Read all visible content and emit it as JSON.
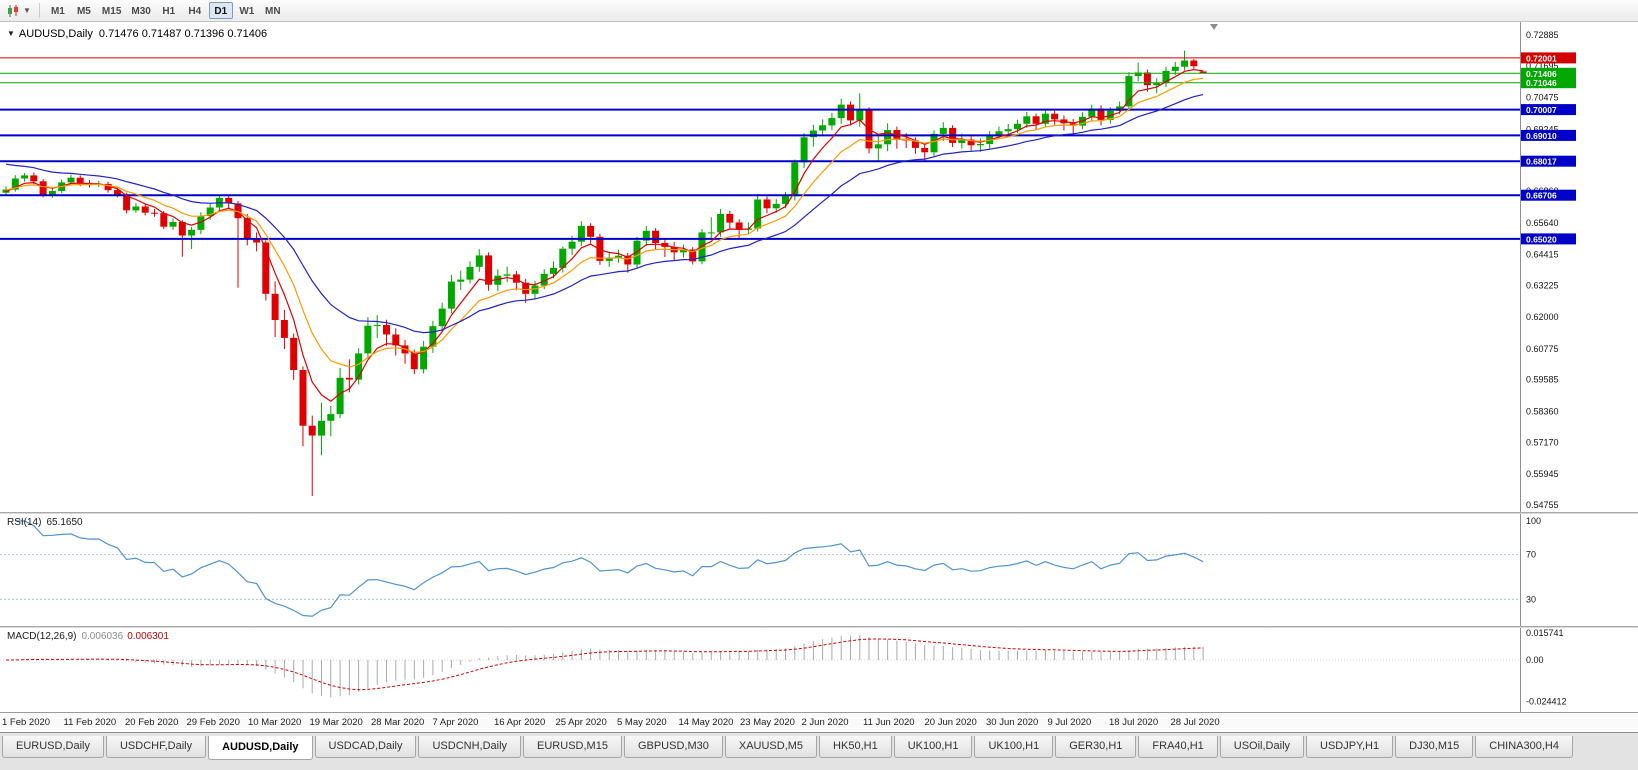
{
  "toolbar": {
    "timeframes": [
      "M1",
      "M5",
      "M15",
      "M30",
      "H1",
      "H4",
      "D1",
      "W1",
      "MN"
    ],
    "active_timeframe": "D1"
  },
  "chart": {
    "title": "AUDUSD,Daily",
    "ohlc_line": "0.71476 0.71487 0.71396 0.71406",
    "price_axis_ticks": [
      "0.72885",
      "0.71695",
      "0.70475",
      "0.69245",
      "0.68025",
      "0.66860",
      "0.65640",
      "0.64415",
      "0.63225",
      "0.62000",
      "0.60775",
      "0.59585",
      "0.58360",
      "0.57170",
      "0.55945",
      "0.54755"
    ],
    "hlines": [
      {
        "price": 0.72001,
        "label": "0.72001",
        "color": "#d40000",
        "width": 1
      },
      {
        "price": 0.71406,
        "label": "0.71406",
        "color": "#00a800",
        "width": 1
      },
      {
        "price": 0.71046,
        "label": "0.71046",
        "color": "#00a800",
        "width": 1
      },
      {
        "price": 0.70007,
        "label": "0.70007",
        "color": "#0000c8",
        "width": 2
      },
      {
        "price": 0.6901,
        "label": "0.69010",
        "color": "#0000c8",
        "width": 2
      },
      {
        "price": 0.68017,
        "label": "0.68017",
        "color": "#0000c8",
        "width": 2
      },
      {
        "price": 0.66706,
        "label": "0.66706",
        "color": "#0000c8",
        "width": 2
      },
      {
        "price": 0.6502,
        "label": "0.65020",
        "color": "#0000c8",
        "width": 2
      }
    ],
    "colors": {
      "up_candle": "#00a800",
      "down_candle": "#e00000",
      "rsi_line": "#4f94d4",
      "rsi_levels": "#a8c4dc",
      "macd_histogram": "#aaaaaa",
      "macd_signal": "#d40000",
      "axis_text": "#141414",
      "badge_text": "#ffffff"
    }
  },
  "rsi": {
    "label": "RSI(14)",
    "value": "65.1650",
    "period": 14,
    "levels": [
      70,
      30
    ],
    "axis_labels": [
      "100",
      "70",
      "30"
    ]
  },
  "macd": {
    "label": "MACD(12,26,9)",
    "value_main": "0.006036",
    "value_signal": "0.006301",
    "fast": 12,
    "slow": 26,
    "signal": 9,
    "axis_labels": [
      "0.015741",
      "0.00",
      "-0.024412"
    ]
  },
  "tabs": {
    "active_index": 2,
    "items": [
      "EURUSD,Daily",
      "USDCHF,Daily",
      "AUDUSD,Daily",
      "USDCAD,Daily",
      "USDCNH,Daily",
      "EURUSD,M15",
      "GBPUSD,M30",
      "XAUUSD,M5",
      "HK50,H1",
      "UK100,H1",
      "UK100,H1",
      "GER30,H1",
      "FRA40,H1",
      "USOil,Daily",
      "USDJPY,H1",
      "DJ30,M15",
      "CHINA300,H4"
    ]
  },
  "chart_data": {
    "type": "candlestick",
    "symbol": "AUDUSD",
    "timeframe": "Daily",
    "visible_price_range": [
      0.54755,
      0.72885
    ],
    "date_labels": [
      "1 Feb 2020",
      "11 Feb 2020",
      "20 Feb 2020",
      "29 Feb 2020",
      "10 Mar 2020",
      "19 Mar 2020",
      "28 Mar 2020",
      "7 Apr 2020",
      "16 Apr 2020",
      "25 Apr 2020",
      "5 May 2020",
      "14 May 2020",
      "23 May 2020",
      "2 Jun 2020",
      "11 Jun 2020",
      "20 Jun 2020",
      "30 Jun 2020",
      "9 Jul 2020",
      "18 Jul 2020",
      "28 Jul 2020"
    ],
    "horizontal_levels": [
      0.72001,
      0.71406,
      0.71046,
      0.70007,
      0.6901,
      0.68017,
      0.66706,
      0.6502
    ],
    "moving_averages": [
      {
        "name": "fast",
        "type": "ema",
        "period": 5,
        "color": "#e00000",
        "seed": 0.668
      },
      {
        "name": "medium",
        "type": "ema",
        "period": 10,
        "color": "#ff9a00",
        "seed": 0.669
      },
      {
        "name": "slow",
        "type": "ema",
        "period": 21,
        "color": "#2222cc",
        "seed": 0.68
      }
    ],
    "candles": [
      [
        0.668,
        0.6705,
        0.6668,
        0.6692
      ],
      [
        0.6692,
        0.6748,
        0.6684,
        0.6735
      ],
      [
        0.6735,
        0.6756,
        0.6722,
        0.6747
      ],
      [
        0.6747,
        0.6758,
        0.6713,
        0.6724
      ],
      [
        0.6724,
        0.6733,
        0.6662,
        0.6671
      ],
      [
        0.6671,
        0.6697,
        0.666,
        0.6687
      ],
      [
        0.6687,
        0.6731,
        0.6678,
        0.672
      ],
      [
        0.672,
        0.675,
        0.6711,
        0.6738
      ],
      [
        0.6738,
        0.6747,
        0.6705,
        0.6718
      ],
      [
        0.6718,
        0.6729,
        0.67,
        0.6712
      ],
      [
        0.6712,
        0.6726,
        0.6702,
        0.6714
      ],
      [
        0.6714,
        0.6722,
        0.668,
        0.669
      ],
      [
        0.669,
        0.67,
        0.6662,
        0.6673
      ],
      [
        0.6673,
        0.668,
        0.66,
        0.6612
      ],
      [
        0.6612,
        0.664,
        0.6603,
        0.6627
      ],
      [
        0.6627,
        0.6635,
        0.6592,
        0.6603
      ],
      [
        0.6603,
        0.6618,
        0.6587,
        0.6601
      ],
      [
        0.6601,
        0.661,
        0.654,
        0.6549
      ],
      [
        0.6549,
        0.658,
        0.6537,
        0.6567
      ],
      [
        0.6567,
        0.6574,
        0.6433,
        0.6515
      ],
      [
        0.6515,
        0.6548,
        0.6463,
        0.6537
      ],
      [
        0.6537,
        0.6605,
        0.652,
        0.659
      ],
      [
        0.659,
        0.6638,
        0.6576,
        0.6623
      ],
      [
        0.6623,
        0.6673,
        0.661,
        0.666
      ],
      [
        0.666,
        0.667,
        0.662,
        0.6639
      ],
      [
        0.6639,
        0.6648,
        0.6313,
        0.6582
      ],
      [
        0.6582,
        0.6598,
        0.6477,
        0.6505
      ],
      [
        0.6505,
        0.6527,
        0.6454,
        0.6488
      ],
      [
        0.6488,
        0.6497,
        0.6264,
        0.629
      ],
      [
        0.629,
        0.6338,
        0.6123,
        0.6189
      ],
      [
        0.6189,
        0.6228,
        0.6077,
        0.612
      ],
      [
        0.612,
        0.6137,
        0.5958,
        0.5996
      ],
      [
        0.5996,
        0.601,
        0.5702,
        0.5781
      ],
      [
        0.5781,
        0.582,
        0.551,
        0.5743
      ],
      [
        0.5743,
        0.587,
        0.5667,
        0.58
      ],
      [
        0.58,
        0.5857,
        0.574,
        0.5826
      ],
      [
        0.5826,
        0.6004,
        0.581,
        0.5966
      ],
      [
        0.5966,
        0.6037,
        0.591,
        0.5959
      ],
      [
        0.5959,
        0.608,
        0.594,
        0.606
      ],
      [
        0.606,
        0.62,
        0.604,
        0.6167
      ],
      [
        0.6167,
        0.6208,
        0.612,
        0.617
      ],
      [
        0.617,
        0.619,
        0.609,
        0.6133
      ],
      [
        0.6133,
        0.6157,
        0.6052,
        0.6091
      ],
      [
        0.6091,
        0.6112,
        0.602,
        0.606
      ],
      [
        0.606,
        0.6075,
        0.598,
        0.5999
      ],
      [
        0.5999,
        0.6108,
        0.5982,
        0.6086
      ],
      [
        0.6086,
        0.6186,
        0.6062,
        0.6165
      ],
      [
        0.6165,
        0.6256,
        0.6141,
        0.6233
      ],
      [
        0.6233,
        0.6363,
        0.6215,
        0.6337
      ],
      [
        0.6337,
        0.638,
        0.6305,
        0.6345
      ],
      [
        0.6345,
        0.6416,
        0.633,
        0.6394
      ],
      [
        0.6394,
        0.6462,
        0.6375,
        0.6438
      ],
      [
        0.6438,
        0.645,
        0.6302,
        0.6325
      ],
      [
        0.6325,
        0.6385,
        0.63,
        0.636
      ],
      [
        0.636,
        0.6395,
        0.6335,
        0.6365
      ],
      [
        0.6365,
        0.6378,
        0.6303,
        0.6333
      ],
      [
        0.6333,
        0.6348,
        0.6254,
        0.629
      ],
      [
        0.629,
        0.634,
        0.6268,
        0.6322
      ],
      [
        0.6322,
        0.6385,
        0.6308,
        0.6367
      ],
      [
        0.6367,
        0.6415,
        0.635,
        0.639
      ],
      [
        0.639,
        0.6472,
        0.6372,
        0.6464
      ],
      [
        0.6464,
        0.6514,
        0.644,
        0.6491
      ],
      [
        0.6491,
        0.657,
        0.6475,
        0.6552
      ],
      [
        0.6552,
        0.6562,
        0.6485,
        0.651
      ],
      [
        0.651,
        0.6522,
        0.6402,
        0.6417
      ],
      [
        0.6417,
        0.6453,
        0.6394,
        0.6428
      ],
      [
        0.6428,
        0.646,
        0.641,
        0.6437
      ],
      [
        0.6437,
        0.6448,
        0.6372,
        0.6403
      ],
      [
        0.6403,
        0.651,
        0.639,
        0.6495
      ],
      [
        0.6495,
        0.6552,
        0.6475,
        0.6533
      ],
      [
        0.6533,
        0.6543,
        0.6462,
        0.6486
      ],
      [
        0.6486,
        0.6503,
        0.6432,
        0.6471
      ],
      [
        0.6471,
        0.649,
        0.642,
        0.645
      ],
      [
        0.645,
        0.648,
        0.643,
        0.6461
      ],
      [
        0.6461,
        0.647,
        0.6403,
        0.6415
      ],
      [
        0.6415,
        0.654,
        0.6404,
        0.6527
      ],
      [
        0.6527,
        0.6585,
        0.6505,
        0.6527
      ],
      [
        0.6527,
        0.6617,
        0.651,
        0.6598
      ],
      [
        0.6598,
        0.661,
        0.6541,
        0.6565
      ],
      [
        0.6565,
        0.6578,
        0.6506,
        0.6537
      ],
      [
        0.6537,
        0.6565,
        0.6519,
        0.6542
      ],
      [
        0.6542,
        0.6675,
        0.653,
        0.6654
      ],
      [
        0.6654,
        0.6665,
        0.6601,
        0.662
      ],
      [
        0.662,
        0.6655,
        0.6602,
        0.6637
      ],
      [
        0.6637,
        0.6683,
        0.662,
        0.6667
      ],
      [
        0.6667,
        0.6808,
        0.665,
        0.6797
      ],
      [
        0.6797,
        0.691,
        0.6775,
        0.6894
      ],
      [
        0.6894,
        0.6942,
        0.6858,
        0.692
      ],
      [
        0.692,
        0.6963,
        0.6903,
        0.694
      ],
      [
        0.694,
        0.6988,
        0.6922,
        0.6968
      ],
      [
        0.6968,
        0.7043,
        0.6945,
        0.702
      ],
      [
        0.702,
        0.7032,
        0.694,
        0.6959
      ],
      [
        0.6959,
        0.7064,
        0.6935,
        0.6998
      ],
      [
        0.6998,
        0.701,
        0.6832,
        0.6851
      ],
      [
        0.6851,
        0.6902,
        0.68,
        0.6867
      ],
      [
        0.6867,
        0.6948,
        0.684,
        0.6922
      ],
      [
        0.6922,
        0.6935,
        0.685,
        0.6888
      ],
      [
        0.6888,
        0.691,
        0.6852,
        0.6881
      ],
      [
        0.6881,
        0.6894,
        0.683,
        0.6853
      ],
      [
        0.6853,
        0.687,
        0.68,
        0.6836
      ],
      [
        0.6836,
        0.692,
        0.682,
        0.6907
      ],
      [
        0.6907,
        0.6952,
        0.688,
        0.693
      ],
      [
        0.693,
        0.694,
        0.6856,
        0.6872
      ],
      [
        0.6872,
        0.6908,
        0.685,
        0.6885
      ],
      [
        0.6885,
        0.6898,
        0.6841,
        0.6863
      ],
      [
        0.6863,
        0.689,
        0.6838,
        0.6868
      ],
      [
        0.6868,
        0.6918,
        0.685,
        0.6902
      ],
      [
        0.6902,
        0.6935,
        0.689,
        0.6917
      ],
      [
        0.6917,
        0.6946,
        0.6902,
        0.6925
      ],
      [
        0.6925,
        0.6962,
        0.691,
        0.6946
      ],
      [
        0.6946,
        0.6992,
        0.693,
        0.6975
      ],
      [
        0.6975,
        0.6985,
        0.6921,
        0.6946
      ],
      [
        0.6946,
        0.7,
        0.6932,
        0.6985
      ],
      [
        0.6985,
        0.6996,
        0.6942,
        0.6963
      ],
      [
        0.6963,
        0.6978,
        0.692,
        0.6948
      ],
      [
        0.6948,
        0.6965,
        0.6902,
        0.6939
      ],
      [
        0.6939,
        0.699,
        0.6925,
        0.6973
      ],
      [
        0.6973,
        0.702,
        0.6958,
        0.7005
      ],
      [
        0.7005,
        0.7017,
        0.694,
        0.6961
      ],
      [
        0.6961,
        0.701,
        0.6946,
        0.6996
      ],
      [
        0.6996,
        0.7032,
        0.6982,
        0.7013
      ],
      [
        0.7013,
        0.7145,
        0.7,
        0.713
      ],
      [
        0.713,
        0.7182,
        0.711,
        0.7144
      ],
      [
        0.7144,
        0.7155,
        0.707,
        0.7095
      ],
      [
        0.7095,
        0.7122,
        0.7064,
        0.7103
      ],
      [
        0.7103,
        0.7166,
        0.7088,
        0.715
      ],
      [
        0.715,
        0.7184,
        0.7134,
        0.7166
      ],
      [
        0.7166,
        0.7228,
        0.7152,
        0.719
      ],
      [
        0.719,
        0.7196,
        0.7158,
        0.7168
      ],
      [
        0.7148,
        0.7149,
        0.714,
        0.7141
      ]
    ]
  }
}
